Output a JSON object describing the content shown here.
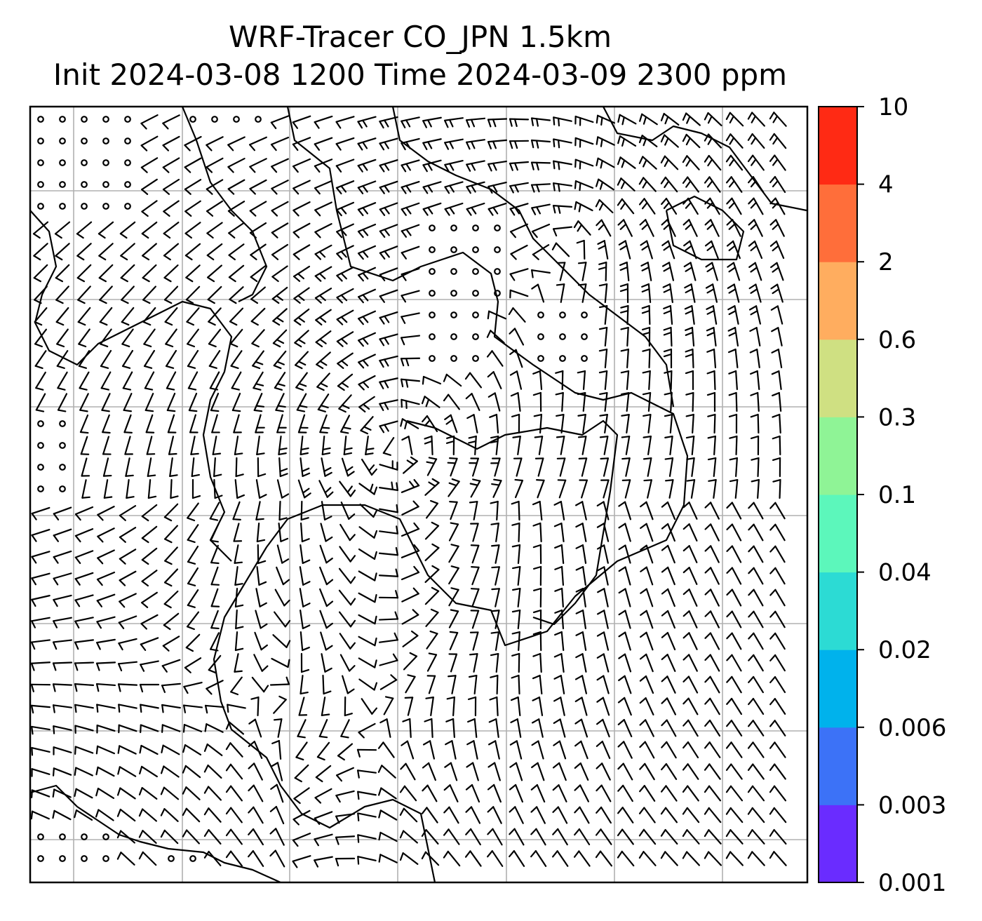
{
  "title": {
    "line1": "WRF-Tracer CO_JPN 1.5km",
    "line2": "Init 2024-03-08 1200 Time 2024-03-09 2300 ppm"
  },
  "map": {
    "coastline_color": "#000000",
    "gridline_color": "#b0b0b0",
    "barb_color": "#000000",
    "gridlines": true
  },
  "colorbar": {
    "levels": [
      "0.001",
      "0.003",
      "0.006",
      "0.02",
      "0.04",
      "0.1",
      "0.3",
      "0.6",
      "2",
      "4",
      "10"
    ],
    "colors": [
      "#6a2cff",
      "#3c72f7",
      "#00b2ec",
      "#2cdbd4",
      "#5cf7bb",
      "#8ff496",
      "#cfe082",
      "#ffad5f",
      "#ff6e3a",
      "#ff2a14"
    ]
  }
}
